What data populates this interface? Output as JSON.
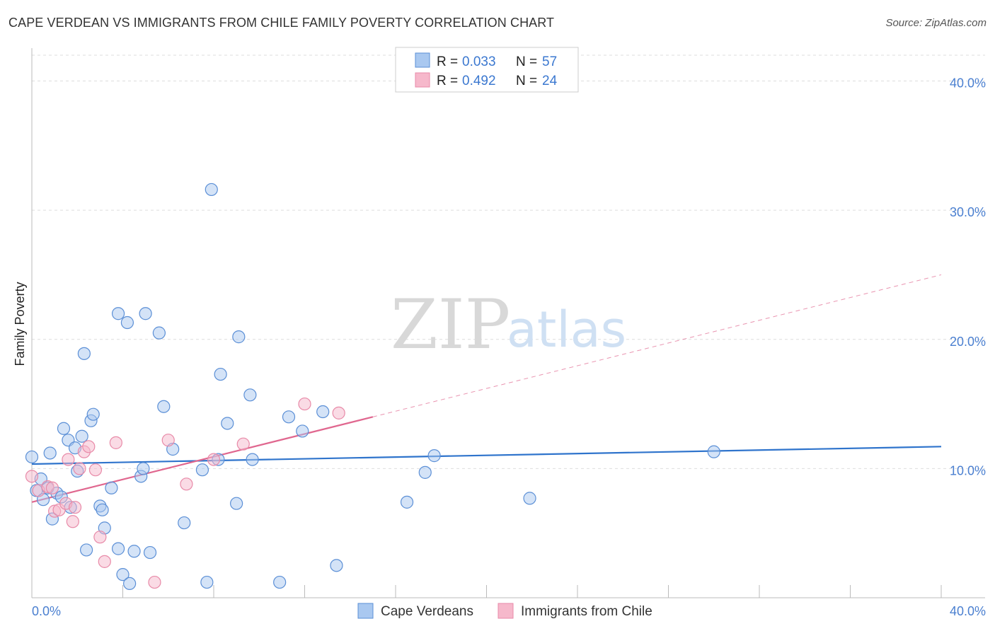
{
  "header": {
    "title": "CAPE VERDEAN VS IMMIGRANTS FROM CHILE FAMILY POVERTY CORRELATION CHART",
    "source": "Source: ZipAtlas.com"
  },
  "watermark": {
    "zip": "ZIP",
    "atlas": "atlas"
  },
  "legend": {
    "rows": [
      {
        "r_label": "R =",
        "r_value": "0.033",
        "n_label": "N =",
        "n_value": "57",
        "color": "#a9c8f0"
      },
      {
        "r_label": "R =",
        "r_value": "0.492",
        "n_label": "N =",
        "n_value": "24",
        "color": "#f6b8cb"
      }
    ]
  },
  "bottom_legend": [
    {
      "label": "Cape Verdeans",
      "color": "#a9c8f0"
    },
    {
      "label": "Immigrants from Chile",
      "color": "#f6b8cb"
    }
  ],
  "colors": {
    "blue_fill": "#a9c8f0",
    "blue_stroke": "#5b8fd6",
    "blue_line": "#2f74cc",
    "pink_fill": "#f6b8cb",
    "pink_stroke": "#e88aa8",
    "pink_line": "#e0678f",
    "tick": "#4a7fd0",
    "grid": "#dddddd"
  },
  "chart_data": {
    "type": "scatter",
    "title": "CAPE VERDEAN VS IMMIGRANTS FROM CHILE FAMILY POVERTY CORRELATION CHART",
    "xlabel": "",
    "ylabel": "Family Poverty",
    "xlim": [
      0,
      0.4
    ],
    "ylim": [
      0,
      0.42
    ],
    "x_tick_labels": [
      "0.0%",
      "40.0%"
    ],
    "y_ticks": [
      0.1,
      0.2,
      0.3,
      0.4
    ],
    "y_tick_labels": [
      "10.0%",
      "20.0%",
      "30.0%",
      "40.0%"
    ],
    "grid": true,
    "legend_position": "top-center",
    "series": [
      {
        "name": "Cape Verdeans",
        "color": "#a9c8f0",
        "trend": {
          "x0": 0.0,
          "y0": 0.1035,
          "x1": 0.4,
          "y1": 0.117,
          "solid_to": 0.4
        },
        "points": [
          [
            0.0,
            0.109
          ],
          [
            0.002,
            0.083
          ],
          [
            0.004,
            0.092
          ],
          [
            0.005,
            0.076
          ],
          [
            0.007,
            0.085
          ],
          [
            0.008,
            0.112
          ],
          [
            0.009,
            0.061
          ],
          [
            0.011,
            0.081
          ],
          [
            0.013,
            0.078
          ],
          [
            0.014,
            0.131
          ],
          [
            0.016,
            0.122
          ],
          [
            0.017,
            0.07
          ],
          [
            0.019,
            0.116
          ],
          [
            0.02,
            0.098
          ],
          [
            0.022,
            0.125
          ],
          [
            0.023,
            0.189
          ],
          [
            0.024,
            0.037
          ],
          [
            0.026,
            0.137
          ],
          [
            0.027,
            0.142
          ],
          [
            0.03,
            0.071
          ],
          [
            0.031,
            0.068
          ],
          [
            0.032,
            0.054
          ],
          [
            0.035,
            0.085
          ],
          [
            0.038,
            0.22
          ],
          [
            0.038,
            0.038
          ],
          [
            0.04,
            0.018
          ],
          [
            0.042,
            0.213
          ],
          [
            0.043,
            0.011
          ],
          [
            0.045,
            0.036
          ],
          [
            0.048,
            0.094
          ],
          [
            0.049,
            0.1
          ],
          [
            0.05,
            0.22
          ],
          [
            0.052,
            0.035
          ],
          [
            0.056,
            0.205
          ],
          [
            0.058,
            0.148
          ],
          [
            0.062,
            0.115
          ],
          [
            0.067,
            0.058
          ],
          [
            0.075,
            0.099
          ],
          [
            0.077,
            0.012
          ],
          [
            0.079,
            0.316
          ],
          [
            0.082,
            0.107
          ],
          [
            0.083,
            0.173
          ],
          [
            0.086,
            0.135
          ],
          [
            0.09,
            0.073
          ],
          [
            0.091,
            0.202
          ],
          [
            0.096,
            0.157
          ],
          [
            0.097,
            0.107
          ],
          [
            0.109,
            0.012
          ],
          [
            0.113,
            0.14
          ],
          [
            0.119,
            0.129
          ],
          [
            0.128,
            0.144
          ],
          [
            0.134,
            0.025
          ],
          [
            0.165,
            0.074
          ],
          [
            0.173,
            0.097
          ],
          [
            0.177,
            0.11
          ],
          [
            0.219,
            0.077
          ],
          [
            0.3,
            0.113
          ]
        ]
      },
      {
        "name": "Immigrants from Chile",
        "color": "#f6b8cb",
        "trend": {
          "x0": 0.0,
          "y0": 0.074,
          "x1": 0.4,
          "y1": 0.25,
          "solid_to": 0.15
        },
        "points": [
          [
            0.0,
            0.094
          ],
          [
            0.003,
            0.083
          ],
          [
            0.007,
            0.086
          ],
          [
            0.009,
            0.085
          ],
          [
            0.01,
            0.067
          ],
          [
            0.012,
            0.068
          ],
          [
            0.015,
            0.073
          ],
          [
            0.016,
            0.107
          ],
          [
            0.018,
            0.059
          ],
          [
            0.019,
            0.07
          ],
          [
            0.021,
            0.1
          ],
          [
            0.023,
            0.113
          ],
          [
            0.025,
            0.117
          ],
          [
            0.028,
            0.099
          ],
          [
            0.03,
            0.047
          ],
          [
            0.032,
            0.028
          ],
          [
            0.037,
            0.12
          ],
          [
            0.054,
            0.012
          ],
          [
            0.06,
            0.122
          ],
          [
            0.068,
            0.088
          ],
          [
            0.08,
            0.107
          ],
          [
            0.093,
            0.119
          ],
          [
            0.12,
            0.15
          ],
          [
            0.135,
            0.143
          ]
        ]
      }
    ]
  }
}
